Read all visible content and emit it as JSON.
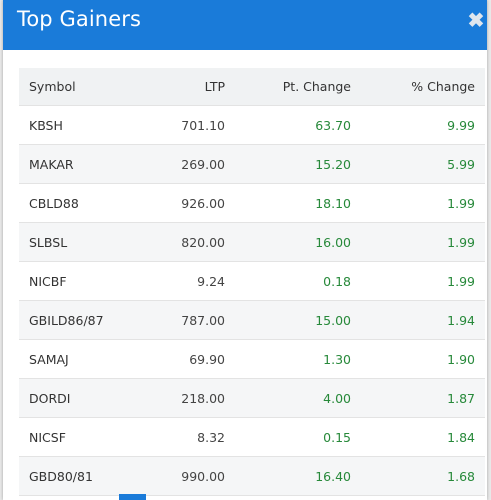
{
  "modal": {
    "title": "Top Gainers",
    "close_label": "✖"
  },
  "table": {
    "headers": [
      "Symbol",
      "LTP",
      "Pt. Change",
      "% Change"
    ],
    "rows": [
      {
        "symbol": "KBSH",
        "ltp": "701.10",
        "pt_change": "63.70",
        "pct_change": "9.99"
      },
      {
        "symbol": "MAKAR",
        "ltp": "269.00",
        "pt_change": "15.20",
        "pct_change": "5.99"
      },
      {
        "symbol": "CBLD88",
        "ltp": "926.00",
        "pt_change": "18.10",
        "pct_change": "1.99"
      },
      {
        "symbol": "SLBSL",
        "ltp": "820.00",
        "pt_change": "16.00",
        "pct_change": "1.99"
      },
      {
        "symbol": "NICBF",
        "ltp": "9.24",
        "pt_change": "0.18",
        "pct_change": "1.99"
      },
      {
        "symbol": "GBILD86/87",
        "ltp": "787.00",
        "pt_change": "15.00",
        "pct_change": "1.94"
      },
      {
        "symbol": "SAMAJ",
        "ltp": "69.90",
        "pt_change": "1.30",
        "pct_change": "1.90"
      },
      {
        "symbol": "DORDI",
        "ltp": "218.00",
        "pt_change": "4.00",
        "pct_change": "1.87"
      },
      {
        "symbol": "NICSF",
        "ltp": "8.32",
        "pt_change": "0.15",
        "pct_change": "1.84"
      },
      {
        "symbol": "GBD80/81",
        "ltp": "990.00",
        "pt_change": "16.40",
        "pct_change": "1.68"
      }
    ]
  },
  "colors": {
    "header_bg": "#1a7bd9",
    "positive": "#27893a"
  }
}
